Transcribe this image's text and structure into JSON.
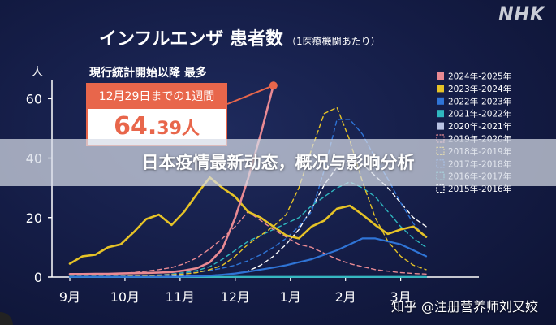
{
  "brand": {
    "logo_text": "NHK"
  },
  "header": {
    "title": "インフルエンザ 患者数",
    "subtitle": "（1医療機関あたり）"
  },
  "callout": {
    "heading": "現行統計開始以降 最多",
    "period": "12月29日までの1週間",
    "value_main": "64.",
    "value_tail": "39人"
  },
  "headline": "日本疫情最新动态，概况与影响分析",
  "watermark": "知乎 @注册营养师刘又姣",
  "colors": {
    "background": "#141c45",
    "axis": "#ffffff",
    "accent": "#e8664b"
  },
  "chart_data": {
    "type": "line",
    "title": "インフルエンザ 患者数",
    "ylabel": "人",
    "ylim": [
      0,
      65
    ],
    "yticks": [
      0,
      20,
      40,
      60
    ],
    "xtick_labels": [
      "9月",
      "10月",
      "11月",
      "12月",
      "1月",
      "2月",
      "3月"
    ],
    "x_weeks": [
      0,
      1,
      2,
      3,
      4,
      5,
      6,
      7,
      8,
      9,
      10,
      11,
      12,
      13,
      14,
      15,
      16,
      17,
      18,
      19,
      20,
      21,
      22,
      23,
      24,
      25,
      26,
      27,
      28,
      29,
      30,
      31
    ],
    "legend_position": "right",
    "series": [
      {
        "name": "2024年-2025年",
        "color": "#e98a93",
        "style": "solid",
        "width": 2.6,
        "values": [
          1.0,
          1.0,
          1.1,
          1.1,
          1.2,
          1.3,
          1.4,
          1.5,
          1.7,
          2.2,
          3.0,
          5.0,
          9.5,
          20.0,
          33.0,
          48.0,
          64.39
        ]
      },
      {
        "name": "2023年-2024年",
        "color": "#e6c327",
        "style": "solid",
        "width": 2.6,
        "values": [
          4.5,
          7.0,
          7.5,
          10.0,
          11.0,
          15.0,
          19.5,
          21.0,
          17.5,
          22.0,
          28.0,
          33.5,
          30.0,
          27.0,
          22.0,
          20.0,
          17.0,
          14.0,
          13.0,
          17.0,
          19.0,
          23.0,
          24.0,
          21.0,
          17.5,
          14.5,
          16.0,
          17.0,
          13.5
        ]
      },
      {
        "name": "2022年-2023年",
        "color": "#2f74d6",
        "style": "solid",
        "width": 2.2,
        "values": [
          0.1,
          0.1,
          0.1,
          0.1,
          0.1,
          0.1,
          0.1,
          0.1,
          0.1,
          0.2,
          0.3,
          0.5,
          0.8,
          1.2,
          1.8,
          2.5,
          3.2,
          4.0,
          5.0,
          6.0,
          7.5,
          9.0,
          11.0,
          13.0,
          13.0,
          12.0,
          11.0,
          9.0,
          7.0
        ]
      },
      {
        "name": "2021年-2022年",
        "color": "#2fb7bf",
        "style": "solid",
        "width": 2.2,
        "values": [
          0.05,
          0.05,
          0.05,
          0.05,
          0.05,
          0.05,
          0.05,
          0.05,
          0.05,
          0.05,
          0.05,
          0.05,
          0.05,
          0.05,
          0.05,
          0.05,
          0.05,
          0.05,
          0.05,
          0.05,
          0.05,
          0.05,
          0.05,
          0.05,
          0.05,
          0.05,
          0.05,
          0.05,
          0.05
        ]
      },
      {
        "name": "2020年-2021年",
        "color": "#b9c3e4",
        "style": "solid",
        "width": 2.0,
        "values": [
          0.02,
          0.02,
          0.02,
          0.02,
          0.02,
          0.02,
          0.02,
          0.02,
          0.02,
          0.02,
          0.02,
          0.02,
          0.02,
          0.02,
          0.02,
          0.02,
          0.02,
          0.02,
          0.02,
          0.02,
          0.02,
          0.02,
          0.02,
          0.02,
          0.02,
          0.02,
          0.02,
          0.02,
          0.02
        ]
      },
      {
        "name": "2019年-2020年",
        "color": "#e98a93",
        "style": "dashed",
        "width": 1.4,
        "values": [
          0.8,
          0.8,
          0.9,
          1.0,
          1.2,
          1.5,
          2.0,
          2.5,
          3.2,
          4.5,
          6.5,
          9.5,
          13.0,
          17.0,
          22.0,
          19.0,
          16.0,
          13.5,
          11.0,
          10.0,
          8.0,
          6.0,
          4.5,
          3.5,
          2.5,
          2.0,
          1.5,
          1.2,
          1.0
        ]
      },
      {
        "name": "2018年-2019年",
        "color": "#e6c327",
        "style": "dashed",
        "width": 1.4,
        "values": [
          0.3,
          0.3,
          0.3,
          0.3,
          0.3,
          0.4,
          0.5,
          0.6,
          0.8,
          1.0,
          1.5,
          2.5,
          4.0,
          7.0,
          11.0,
          14.0,
          17.0,
          21.0,
          30.0,
          43.0,
          55.0,
          57.0,
          46.0,
          32.0,
          20.0,
          12.0,
          7.0,
          4.0,
          2.5
        ]
      },
      {
        "name": "2017年-2018年",
        "color": "#2f74d6",
        "style": "dashed",
        "width": 1.4,
        "values": [
          0.3,
          0.3,
          0.3,
          0.3,
          0.3,
          0.4,
          0.5,
          0.7,
          0.9,
          1.2,
          1.6,
          2.2,
          3.0,
          4.0,
          5.5,
          7.5,
          10.0,
          13.0,
          17.0,
          22.0,
          36.0,
          53.0,
          53.0,
          48.0,
          40.0,
          33.0,
          25.0,
          18.0,
          13.0
        ]
      },
      {
        "name": "2016年-2017年",
        "color": "#2fb7bf",
        "style": "dashed",
        "width": 1.4,
        "values": [
          0.3,
          0.3,
          0.3,
          0.3,
          0.3,
          0.4,
          0.5,
          0.7,
          1.0,
          1.5,
          2.2,
          3.5,
          6.0,
          9.0,
          12.0,
          14.0,
          16.0,
          18.0,
          20.0,
          24.0,
          27.0,
          30.0,
          32.0,
          30.0,
          27.0,
          22.0,
          17.0,
          13.0,
          10.0
        ]
      },
      {
        "name": "2015年-2016年",
        "color": "#ffffff",
        "style": "dashed",
        "width": 1.4,
        "values": [
          0.2,
          0.2,
          0.2,
          0.2,
          0.2,
          0.2,
          0.2,
          0.2,
          0.3,
          0.4,
          0.5,
          0.6,
          0.8,
          1.2,
          2.0,
          4.0,
          7.0,
          11.0,
          16.0,
          23.0,
          31.0,
          37.0,
          39.0,
          38.0,
          34.0,
          30.0,
          25.0,
          20.0,
          17.0
        ]
      }
    ]
  }
}
